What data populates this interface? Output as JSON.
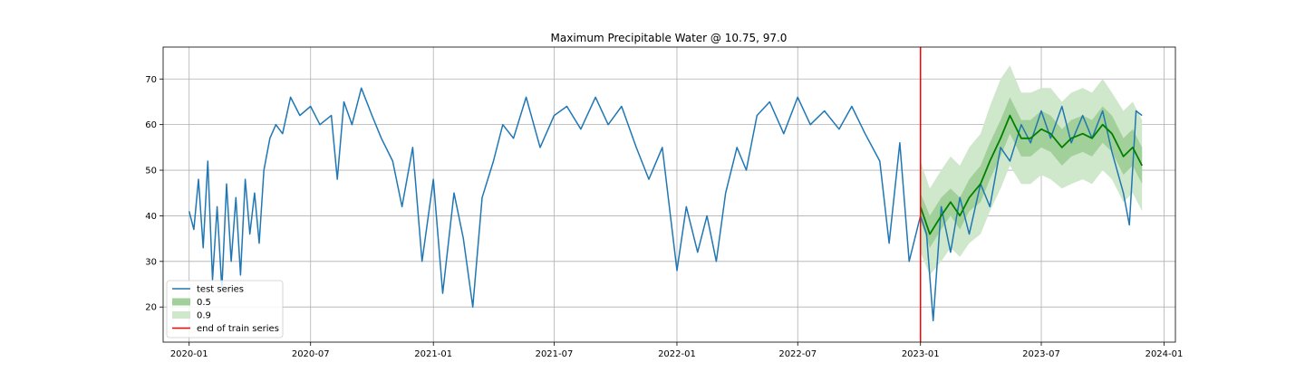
{
  "chart_data": {
    "type": "line",
    "title": "Maximum Precipitable Water @ 10.75, 97.0",
    "xlabel": "",
    "ylabel": "",
    "x_range": [
      "2019-11-23",
      "2024-01-18"
    ],
    "ylim": [
      12.3,
      77.0
    ],
    "grid": true,
    "legend_placement": "lower-left",
    "x_ticks": [
      "2020-01",
      "2020-07",
      "2021-01",
      "2021-07",
      "2022-01",
      "2022-07",
      "2023-01",
      "2023-07",
      "2024-01"
    ],
    "y_ticks": [
      20,
      30,
      40,
      50,
      60,
      70
    ],
    "train_end": "2023-01-01",
    "legend": [
      {
        "label": "test series",
        "kind": "line",
        "color": "#1f77b4"
      },
      {
        "label": "0.5",
        "kind": "patch",
        "color": "#a2d09a"
      },
      {
        "label": "0.9",
        "kind": "patch",
        "color": "#cfe7cb"
      },
      {
        "label": "end of train series",
        "kind": "line",
        "color": "#d62728"
      }
    ],
    "test_series": {
      "name": "test series",
      "color": "#1f77b4",
      "points": [
        [
          "2020-01-01",
          41
        ],
        [
          "2020-01-08",
          37
        ],
        [
          "2020-01-15",
          48
        ],
        [
          "2020-01-22",
          33
        ],
        [
          "2020-01-29",
          52
        ],
        [
          "2020-02-05",
          26
        ],
        [
          "2020-02-12",
          42
        ],
        [
          "2020-02-19",
          24
        ],
        [
          "2020-02-26",
          47
        ],
        [
          "2020-03-04",
          30
        ],
        [
          "2020-03-11",
          44
        ],
        [
          "2020-03-18",
          27
        ],
        [
          "2020-03-25",
          48
        ],
        [
          "2020-04-01",
          36
        ],
        [
          "2020-04-08",
          45
        ],
        [
          "2020-04-15",
          34
        ],
        [
          "2020-04-22",
          50
        ],
        [
          "2020-05-01",
          57
        ],
        [
          "2020-05-10",
          60
        ],
        [
          "2020-05-20",
          58
        ],
        [
          "2020-06-01",
          66
        ],
        [
          "2020-06-15",
          62
        ],
        [
          "2020-07-01",
          64
        ],
        [
          "2020-07-15",
          60
        ],
        [
          "2020-08-01",
          62
        ],
        [
          "2020-08-10",
          48
        ],
        [
          "2020-08-20",
          65
        ],
        [
          "2020-09-01",
          60
        ],
        [
          "2020-09-15",
          68
        ],
        [
          "2020-10-01",
          62
        ],
        [
          "2020-10-15",
          57
        ],
        [
          "2020-11-01",
          52
        ],
        [
          "2020-11-15",
          42
        ],
        [
          "2020-12-01",
          55
        ],
        [
          "2020-12-15",
          30
        ],
        [
          "2021-01-01",
          48
        ],
        [
          "2021-01-15",
          23
        ],
        [
          "2021-02-01",
          45
        ],
        [
          "2021-02-15",
          35
        ],
        [
          "2021-03-01",
          20
        ],
        [
          "2021-03-15",
          44
        ],
        [
          "2021-04-01",
          52
        ],
        [
          "2021-04-15",
          60
        ],
        [
          "2021-05-01",
          57
        ],
        [
          "2021-05-20",
          66
        ],
        [
          "2021-06-10",
          55
        ],
        [
          "2021-07-01",
          62
        ],
        [
          "2021-07-20",
          64
        ],
        [
          "2021-08-10",
          59
        ],
        [
          "2021-09-01",
          66
        ],
        [
          "2021-09-20",
          60
        ],
        [
          "2021-10-10",
          64
        ],
        [
          "2021-11-01",
          55
        ],
        [
          "2021-11-20",
          48
        ],
        [
          "2021-12-10",
          55
        ],
        [
          "2022-01-01",
          28
        ],
        [
          "2022-01-15",
          42
        ],
        [
          "2022-02-01",
          32
        ],
        [
          "2022-02-15",
          40
        ],
        [
          "2022-03-01",
          30
        ],
        [
          "2022-03-15",
          45
        ],
        [
          "2022-04-01",
          55
        ],
        [
          "2022-04-15",
          50
        ],
        [
          "2022-05-01",
          62
        ],
        [
          "2022-05-20",
          65
        ],
        [
          "2022-06-10",
          58
        ],
        [
          "2022-07-01",
          66
        ],
        [
          "2022-07-20",
          60
        ],
        [
          "2022-08-10",
          63
        ],
        [
          "2022-09-01",
          59
        ],
        [
          "2022-09-20",
          64
        ],
        [
          "2022-10-10",
          58
        ],
        [
          "2022-11-01",
          52
        ],
        [
          "2022-11-15",
          34
        ],
        [
          "2022-12-01",
          56
        ],
        [
          "2022-12-15",
          30
        ],
        [
          "2023-01-01",
          40
        ],
        [
          "2023-01-10",
          36
        ],
        [
          "2023-01-20",
          17
        ],
        [
          "2023-02-01",
          42
        ],
        [
          "2023-02-15",
          32
        ],
        [
          "2023-03-01",
          44
        ],
        [
          "2023-03-15",
          36
        ],
        [
          "2023-04-01",
          47
        ],
        [
          "2023-04-15",
          42
        ],
        [
          "2023-05-01",
          55
        ],
        [
          "2023-05-15",
          52
        ],
        [
          "2023-06-01",
          60
        ],
        [
          "2023-06-15",
          56
        ],
        [
          "2023-07-01",
          63
        ],
        [
          "2023-07-15",
          57
        ],
        [
          "2023-08-01",
          64
        ],
        [
          "2023-08-15",
          56
        ],
        [
          "2023-09-01",
          62
        ],
        [
          "2023-09-15",
          57
        ],
        [
          "2023-10-01",
          63
        ],
        [
          "2023-10-15",
          54
        ],
        [
          "2023-11-01",
          45
        ],
        [
          "2023-11-10",
          38
        ],
        [
          "2023-11-20",
          63
        ],
        [
          "2023-11-29",
          62
        ]
      ]
    },
    "forecast": {
      "median_color": "#008000",
      "points": [
        {
          "x": "2023-01-01",
          "median": 42,
          "q50": [
            39,
            45
          ],
          "q90": [
            32,
            52
          ]
        },
        {
          "x": "2023-01-15",
          "median": 36,
          "q50": [
            33,
            40
          ],
          "q90": [
            27,
            46
          ]
        },
        {
          "x": "2023-02-01",
          "median": 40,
          "q50": [
            37,
            44
          ],
          "q90": [
            30,
            50
          ]
        },
        {
          "x": "2023-02-15",
          "median": 43,
          "q50": [
            40,
            46
          ],
          "q90": [
            33,
            53
          ]
        },
        {
          "x": "2023-03-01",
          "median": 40,
          "q50": [
            37,
            44
          ],
          "q90": [
            31,
            51
          ]
        },
        {
          "x": "2023-03-15",
          "median": 44,
          "q50": [
            41,
            48
          ],
          "q90": [
            34,
            55
          ]
        },
        {
          "x": "2023-04-01",
          "median": 47,
          "q50": [
            43,
            51
          ],
          "q90": [
            36,
            58
          ]
        },
        {
          "x": "2023-04-15",
          "median": 52,
          "q50": [
            48,
            56
          ],
          "q90": [
            41,
            64
          ]
        },
        {
          "x": "2023-05-01",
          "median": 57,
          "q50": [
            53,
            61
          ],
          "q90": [
            46,
            70
          ]
        },
        {
          "x": "2023-05-15",
          "median": 62,
          "q50": [
            58,
            66
          ],
          "q90": [
            51,
            73
          ]
        },
        {
          "x": "2023-06-01",
          "median": 57,
          "q50": [
            53,
            61
          ],
          "q90": [
            47,
            67
          ]
        },
        {
          "x": "2023-06-15",
          "median": 57,
          "q50": [
            53,
            61
          ],
          "q90": [
            47,
            67
          ]
        },
        {
          "x": "2023-07-01",
          "median": 59,
          "q50": [
            55,
            63
          ],
          "q90": [
            49,
            68
          ]
        },
        {
          "x": "2023-07-15",
          "median": 58,
          "q50": [
            54,
            62
          ],
          "q90": [
            48,
            68
          ]
        },
        {
          "x": "2023-08-01",
          "median": 55,
          "q50": [
            51,
            59
          ],
          "q90": [
            46,
            65
          ]
        },
        {
          "x": "2023-08-15",
          "median": 57,
          "q50": [
            53,
            61
          ],
          "q90": [
            47,
            67
          ]
        },
        {
          "x": "2023-09-01",
          "median": 58,
          "q50": [
            54,
            62
          ],
          "q90": [
            48,
            68
          ]
        },
        {
          "x": "2023-09-15",
          "median": 57,
          "q50": [
            53,
            61
          ],
          "q90": [
            47,
            67
          ]
        },
        {
          "x": "2023-10-01",
          "median": 60,
          "q50": [
            56,
            64
          ],
          "q90": [
            50,
            70
          ]
        },
        {
          "x": "2023-10-15",
          "median": 58,
          "q50": [
            54,
            62
          ],
          "q90": [
            48,
            67
          ]
        },
        {
          "x": "2023-11-01",
          "median": 53,
          "q50": [
            49,
            57
          ],
          "q90": [
            43,
            63
          ]
        },
        {
          "x": "2023-11-15",
          "median": 55,
          "q50": [
            51,
            59
          ],
          "q90": [
            45,
            65
          ]
        },
        {
          "x": "2023-11-29",
          "median": 51,
          "q50": [
            47,
            55
          ],
          "q90": [
            41,
            61
          ]
        }
      ]
    }
  }
}
